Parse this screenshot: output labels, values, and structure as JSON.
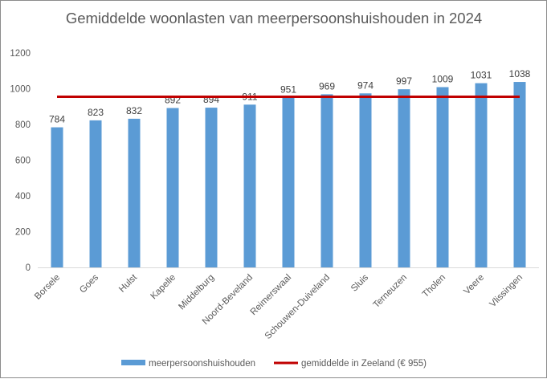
{
  "chart_data": {
    "type": "bar",
    "title": "Gemiddelde woonlasten van  meerpersoonshuishouden in 2024",
    "xlabel": "",
    "ylabel": "",
    "ylim": [
      0,
      1200
    ],
    "yticks": [
      0,
      200,
      400,
      600,
      800,
      1000,
      1200
    ],
    "ytick_labels": [
      "0",
      "200",
      "400",
      "600",
      "800",
      "1000",
      "1200"
    ],
    "grid": false,
    "legend_position": "bottom",
    "categories": [
      "Borsele",
      "Goes",
      "Hulst",
      "Kapelle",
      "Middelburg",
      "Noord-Beveland",
      "Reimerswaal",
      "Schouwen-Duiveland",
      "Sluis",
      "Terneuzen",
      "Tholen",
      "Veere",
      "Vlissingen"
    ],
    "series": [
      {
        "name": "meerpersoonshuishouden",
        "type": "bar",
        "color": "#5b9bd5",
        "values": [
          784,
          823,
          832,
          892,
          894,
          911,
          951,
          969,
          974,
          997,
          1009,
          1031,
          1038
        ],
        "data_labels": [
          "784",
          "823",
          "832",
          "892",
          "894",
          "911",
          "951",
          "969",
          "974",
          "997",
          "1009",
          "1031",
          "1038"
        ]
      },
      {
        "name": "gemiddelde in Zeeland (€ 955)",
        "type": "line",
        "color": "#c00000",
        "value": 955
      }
    ]
  }
}
